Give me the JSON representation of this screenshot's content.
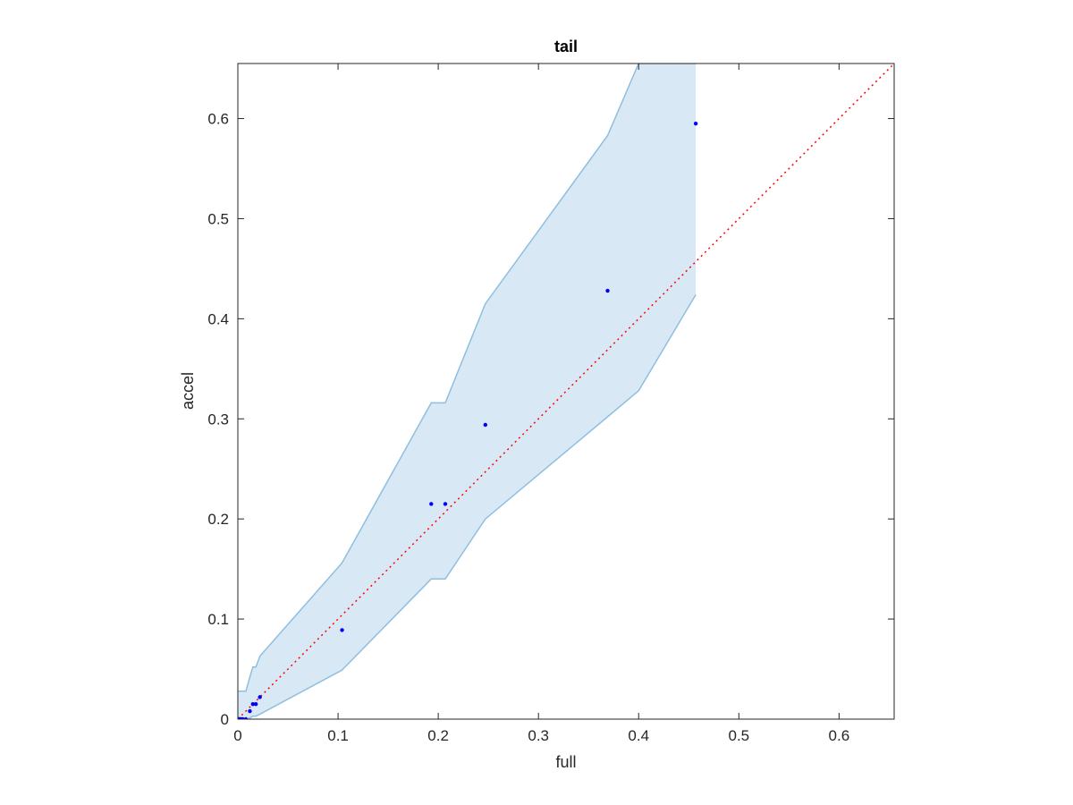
{
  "chart_data": {
    "type": "scatter",
    "title": "tail",
    "xlabel": "full",
    "ylabel": "accel",
    "xlim": [
      0,
      0.655
    ],
    "ylim": [
      0,
      0.655
    ],
    "xticks": [
      0,
      0.1,
      0.2,
      0.3,
      0.4,
      0.5,
      0.6
    ],
    "yticks": [
      0,
      0.1,
      0.2,
      0.3,
      0.4,
      0.5,
      0.6
    ],
    "xtick_labels": [
      "0",
      "0.1",
      "0.2",
      "0.3",
      "0.4",
      "0.5",
      "0.6"
    ],
    "ytick_labels": [
      "0",
      "0.1",
      "0.2",
      "0.3",
      "0.4",
      "0.5",
      "0.6"
    ],
    "grid": false,
    "points": {
      "x": [
        0.0,
        0.001,
        0.002,
        0.003,
        0.005,
        0.008,
        0.012,
        0.015,
        0.018,
        0.022,
        0.104,
        0.193,
        0.207,
        0.247,
        0.369,
        0.457
      ],
      "y": [
        0.0,
        0.0,
        0.0,
        0.0,
        0.0,
        0.0,
        0.008,
        0.015,
        0.015,
        0.022,
        0.089,
        0.215,
        0.215,
        0.294,
        0.428,
        0.595
      ],
      "color": "#0000ff"
    },
    "band": {
      "x": [
        0.0,
        0.008,
        0.012,
        0.015,
        0.018,
        0.022,
        0.104,
        0.193,
        0.207,
        0.247,
        0.369,
        0.4,
        0.457
      ],
      "upper": [
        0.028,
        0.028,
        0.042,
        0.052,
        0.052,
        0.063,
        0.156,
        0.316,
        0.316,
        0.415,
        0.583,
        0.655,
        0.655
      ],
      "lower": [
        0.0,
        0.0,
        0.001,
        0.003,
        0.003,
        0.005,
        0.049,
        0.14,
        0.14,
        0.2,
        0.302,
        0.328,
        0.424
      ],
      "fill": "#d9e8f5",
      "stroke": "#8ebfe0"
    },
    "reference_line": {
      "x": [
        0,
        0.655
      ],
      "y": [
        0,
        0.655
      ],
      "color": "#ff0000",
      "style": "dotted"
    },
    "colors": {
      "axis": "#262626",
      "points": "#0000ff",
      "band_fill": "#d9e8f5",
      "band_edge": "#8ebfe0",
      "reference": "#ff0000"
    }
  }
}
